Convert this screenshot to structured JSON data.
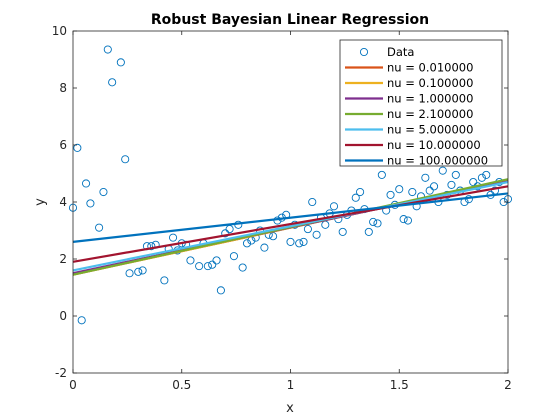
{
  "chart_data": {
    "type": "line",
    "title": "Robust Bayesian Linear Regression",
    "xlabel": "x",
    "ylabel": "y",
    "xlim": [
      0,
      2
    ],
    "ylim": [
      -2,
      10
    ],
    "xticks": [
      0,
      0.5,
      1,
      1.5,
      2
    ],
    "xtick_labels": [
      "0",
      "0.5",
      "1",
      "1.5",
      "2"
    ],
    "yticks": [
      -2,
      0,
      2,
      4,
      6,
      8,
      10
    ],
    "ytick_labels": [
      "-2",
      "0",
      "2",
      "4",
      "6",
      "8",
      "10"
    ],
    "grid": false,
    "legend": "top-right",
    "data_series": {
      "name": "Data",
      "color": "#0072bd",
      "points": [
        [
          0.0,
          3.8
        ],
        [
          0.02,
          5.9
        ],
        [
          0.04,
          -0.15
        ],
        [
          0.06,
          4.65
        ],
        [
          0.08,
          3.95
        ],
        [
          0.12,
          3.1
        ],
        [
          0.14,
          4.35
        ],
        [
          0.16,
          9.35
        ],
        [
          0.18,
          8.2
        ],
        [
          0.22,
          8.9
        ],
        [
          0.24,
          5.5
        ],
        [
          0.26,
          1.5
        ],
        [
          0.3,
          1.55
        ],
        [
          0.32,
          1.6
        ],
        [
          0.34,
          2.45
        ],
        [
          0.36,
          2.45
        ],
        [
          0.38,
          2.5
        ],
        [
          0.42,
          1.25
        ],
        [
          0.44,
          2.35
        ],
        [
          0.46,
          2.75
        ],
        [
          0.48,
          2.3
        ],
        [
          0.5,
          2.55
        ],
        [
          0.52,
          2.5
        ],
        [
          0.54,
          1.95
        ],
        [
          0.58,
          1.75
        ],
        [
          0.6,
          2.55
        ],
        [
          0.62,
          1.75
        ],
        [
          0.64,
          1.8
        ],
        [
          0.66,
          1.95
        ],
        [
          0.68,
          0.9
        ],
        [
          0.7,
          2.9
        ],
        [
          0.72,
          3.05
        ],
        [
          0.74,
          2.1
        ],
        [
          0.76,
          3.2
        ],
        [
          0.78,
          1.7
        ],
        [
          0.8,
          2.55
        ],
        [
          0.82,
          2.65
        ],
        [
          0.84,
          2.75
        ],
        [
          0.86,
          3.0
        ],
        [
          0.88,
          2.4
        ],
        [
          0.9,
          2.85
        ],
        [
          0.92,
          2.8
        ],
        [
          0.94,
          3.35
        ],
        [
          0.96,
          3.45
        ],
        [
          0.98,
          3.55
        ],
        [
          1.0,
          2.6
        ],
        [
          1.02,
          3.2
        ],
        [
          1.04,
          2.55
        ],
        [
          1.06,
          2.6
        ],
        [
          1.08,
          3.05
        ],
        [
          1.1,
          4.0
        ],
        [
          1.12,
          2.85
        ],
        [
          1.14,
          3.45
        ],
        [
          1.16,
          3.2
        ],
        [
          1.18,
          3.6
        ],
        [
          1.2,
          3.85
        ],
        [
          1.22,
          3.4
        ],
        [
          1.24,
          2.95
        ],
        [
          1.26,
          3.55
        ],
        [
          1.28,
          3.7
        ],
        [
          1.3,
          4.15
        ],
        [
          1.32,
          4.35
        ],
        [
          1.34,
          3.75
        ],
        [
          1.36,
          2.95
        ],
        [
          1.38,
          3.3
        ],
        [
          1.4,
          3.25
        ],
        [
          1.42,
          4.95
        ],
        [
          1.44,
          3.7
        ],
        [
          1.46,
          4.25
        ],
        [
          1.48,
          3.9
        ],
        [
          1.5,
          4.45
        ],
        [
          1.52,
          3.4
        ],
        [
          1.54,
          3.35
        ],
        [
          1.56,
          4.35
        ],
        [
          1.58,
          3.85
        ],
        [
          1.6,
          4.2
        ],
        [
          1.62,
          4.85
        ],
        [
          1.64,
          4.4
        ],
        [
          1.66,
          4.55
        ],
        [
          1.68,
          4.0
        ],
        [
          1.7,
          5.1
        ],
        [
          1.72,
          4.25
        ],
        [
          1.74,
          4.6
        ],
        [
          1.76,
          4.95
        ],
        [
          1.78,
          4.4
        ],
        [
          1.8,
          4.0
        ],
        [
          1.82,
          4.1
        ],
        [
          1.84,
          4.7
        ],
        [
          1.86,
          4.55
        ],
        [
          1.88,
          4.85
        ],
        [
          1.9,
          4.95
        ],
        [
          1.92,
          4.25
        ],
        [
          1.94,
          4.4
        ],
        [
          1.96,
          4.7
        ],
        [
          1.98,
          4.0
        ],
        [
          2.0,
          4.1
        ]
      ]
    },
    "series": [
      {
        "name": "nu = 0.010000",
        "color": "#d95319",
        "line": [
          [
            0,
            1.45
          ],
          [
            2,
            4.75
          ]
        ]
      },
      {
        "name": "nu = 0.100000",
        "color": "#edb120",
        "line": [
          [
            0,
            1.45
          ],
          [
            2,
            4.75
          ]
        ]
      },
      {
        "name": "nu = 1.000000",
        "color": "#7e2f8e",
        "line": [
          [
            0,
            1.5
          ],
          [
            2,
            4.72
          ]
        ]
      },
      {
        "name": "nu = 2.100000",
        "color": "#77ac30",
        "line": [
          [
            0,
            1.45
          ],
          [
            2,
            4.8
          ]
        ]
      },
      {
        "name": "nu = 5.000000",
        "color": "#4dbeee",
        "line": [
          [
            0,
            1.6
          ],
          [
            2,
            4.7
          ]
        ]
      },
      {
        "name": "nu = 10.000000",
        "color": "#a2142f",
        "line": [
          [
            0,
            1.9
          ],
          [
            2,
            4.55
          ]
        ]
      },
      {
        "name": "nu = 100.000000",
        "color": "#0072bd",
        "line": [
          [
            0,
            2.6
          ],
          [
            2,
            4.3
          ]
        ]
      }
    ]
  }
}
